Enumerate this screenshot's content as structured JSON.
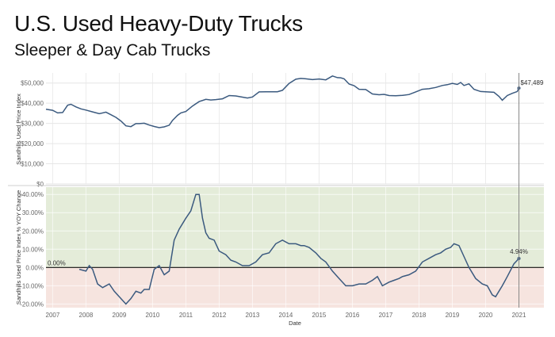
{
  "title": "U.S. Used Heavy-Duty Trucks",
  "subtitle": "Sleeper & Day Cab Trucks",
  "chart_data": [
    {
      "type": "line",
      "ylabel": "Sandhills Used Price Index",
      "ylim": [
        0,
        55000
      ],
      "yticks": [
        0,
        10000,
        20000,
        30000,
        40000,
        50000
      ],
      "ytick_labels": [
        "$0",
        "$10,000",
        "$20,000",
        "$30,000",
        "$40,000",
        "$50,000"
      ],
      "grid": true,
      "annotation": {
        "x": 2021.0,
        "y": 47489,
        "label": "$47,489"
      },
      "x": [
        2006.8,
        2007.0,
        2007.15,
        2007.3,
        2007.45,
        2007.55,
        2007.7,
        2007.85,
        2008.0,
        2008.2,
        2008.4,
        2008.6,
        2008.75,
        2008.9,
        2009.05,
        2009.2,
        2009.35,
        2009.5,
        2009.6,
        2009.75,
        2009.9,
        2010.05,
        2010.2,
        2010.35,
        2010.5,
        2010.6,
        2010.75,
        2010.85,
        2011.0,
        2011.2,
        2011.4,
        2011.6,
        2011.75,
        2011.9,
        2012.1,
        2012.3,
        2012.5,
        2012.7,
        2012.85,
        2013.0,
        2013.2,
        2013.4,
        2013.6,
        2013.75,
        2013.9,
        2014.1,
        2014.3,
        2014.45,
        2014.6,
        2014.8,
        2015.0,
        2015.2,
        2015.4,
        2015.55,
        2015.65,
        2015.75,
        2015.9,
        2016.05,
        2016.2,
        2016.4,
        2016.6,
        2016.8,
        2016.95,
        2017.1,
        2017.3,
        2017.5,
        2017.7,
        2017.9,
        2018.1,
        2018.3,
        2018.5,
        2018.7,
        2018.85,
        2019.0,
        2019.15,
        2019.25,
        2019.35,
        2019.5,
        2019.65,
        2019.85,
        2020.05,
        2020.25,
        2020.4,
        2020.5,
        2020.65,
        2020.8,
        2020.95,
        2021.0
      ],
      "y": [
        37000,
        36500,
        35200,
        35400,
        39000,
        39500,
        38200,
        37200,
        36600,
        35700,
        34800,
        35600,
        34300,
        33000,
        31200,
        28800,
        28400,
        29900,
        29900,
        30100,
        29200,
        28500,
        27900,
        28300,
        29100,
        31500,
        34000,
        35200,
        35900,
        38600,
        40800,
        41900,
        41600,
        41800,
        42200,
        43800,
        43600,
        43000,
        42600,
        43100,
        45600,
        45700,
        45700,
        45700,
        46400,
        49800,
        51900,
        52300,
        52100,
        51700,
        52000,
        51600,
        53500,
        52700,
        52600,
        52100,
        49500,
        48700,
        46900,
        46800,
        44600,
        44200,
        44400,
        43800,
        43700,
        43900,
        44300,
        45600,
        46900,
        47200,
        47800,
        48800,
        49200,
        49800,
        49300,
        50300,
        48800,
        49600,
        46900,
        45800,
        45600,
        45400,
        43400,
        41500,
        43800,
        44900,
        45800,
        47489
      ]
    },
    {
      "type": "line",
      "xlabel": "Date",
      "ylabel": "Sandhills Used Price Index % YOY Change",
      "ylim": [
        -22,
        44
      ],
      "yticks": [
        -20,
        -10,
        0,
        10,
        20,
        30,
        40
      ],
      "ytick_labels": [
        "-20.00%",
        "-10.00%",
        "0.00%",
        "10.00%",
        "20.00%",
        "30.00%",
        "40.00%"
      ],
      "xticks": [
        2007,
        2008,
        2009,
        2010,
        2011,
        2012,
        2013,
        2014,
        2015,
        2016,
        2017,
        2018,
        2019,
        2020,
        2021
      ],
      "xtick_labels": [
        "2007",
        "2008",
        "2009",
        "2010",
        "2011",
        "2012",
        "2013",
        "2014",
        "2015",
        "2016",
        "2017",
        "2018",
        "2019",
        "2020",
        "2021"
      ],
      "zero_label": "0.00%",
      "positive_band_color": "#e4ecd9",
      "negative_band_color": "#f6e4df",
      "annotation": {
        "x": 2021.0,
        "y": 4.94,
        "label": "4.94%"
      },
      "x": [
        2007.8,
        2008.0,
        2008.1,
        2008.2,
        2008.35,
        2008.5,
        2008.7,
        2008.85,
        2009.05,
        2009.2,
        2009.35,
        2009.5,
        2009.65,
        2009.75,
        2009.9,
        2010.05,
        2010.2,
        2010.35,
        2010.5,
        2010.65,
        2010.8,
        2011.0,
        2011.15,
        2011.3,
        2011.4,
        2011.5,
        2011.6,
        2011.7,
        2011.85,
        2012.0,
        2012.2,
        2012.35,
        2012.5,
        2012.7,
        2012.9,
        2013.1,
        2013.3,
        2013.5,
        2013.7,
        2013.9,
        2014.1,
        2014.3,
        2014.45,
        2014.55,
        2014.7,
        2014.9,
        2015.05,
        2015.2,
        2015.4,
        2015.6,
        2015.8,
        2016.0,
        2016.2,
        2016.4,
        2016.6,
        2016.75,
        2016.9,
        2017.1,
        2017.25,
        2017.4,
        2017.5,
        2017.7,
        2017.9,
        2018.1,
        2018.3,
        2018.5,
        2018.65,
        2018.8,
        2018.95,
        2019.05,
        2019.2,
        2019.35,
        2019.5,
        2019.7,
        2019.9,
        2020.05,
        2020.2,
        2020.3,
        2020.5,
        2020.65,
        2020.85,
        2021.0
      ],
      "y": [
        -1,
        -2,
        1,
        -1,
        -9,
        -11,
        -9,
        -13,
        -17,
        -20,
        -17,
        -13,
        -14,
        -12,
        -12,
        -1,
        1,
        -4,
        -2,
        15,
        21,
        27,
        31,
        40,
        40,
        27,
        19,
        16,
        15,
        9,
        7,
        4,
        3,
        1,
        1,
        3,
        7,
        8,
        13,
        15,
        13,
        13,
        12,
        12,
        11,
        8,
        5,
        3,
        -2,
        -6,
        -10,
        -10,
        -9,
        -9,
        -7,
        -5,
        -10,
        -8,
        -7,
        -6,
        -5,
        -4,
        -2,
        3,
        5,
        7,
        8,
        10,
        11,
        13,
        12,
        6,
        0,
        -6,
        -9,
        -10,
        -15,
        -16,
        -10,
        -5,
        2,
        4.94
      ]
    }
  ]
}
